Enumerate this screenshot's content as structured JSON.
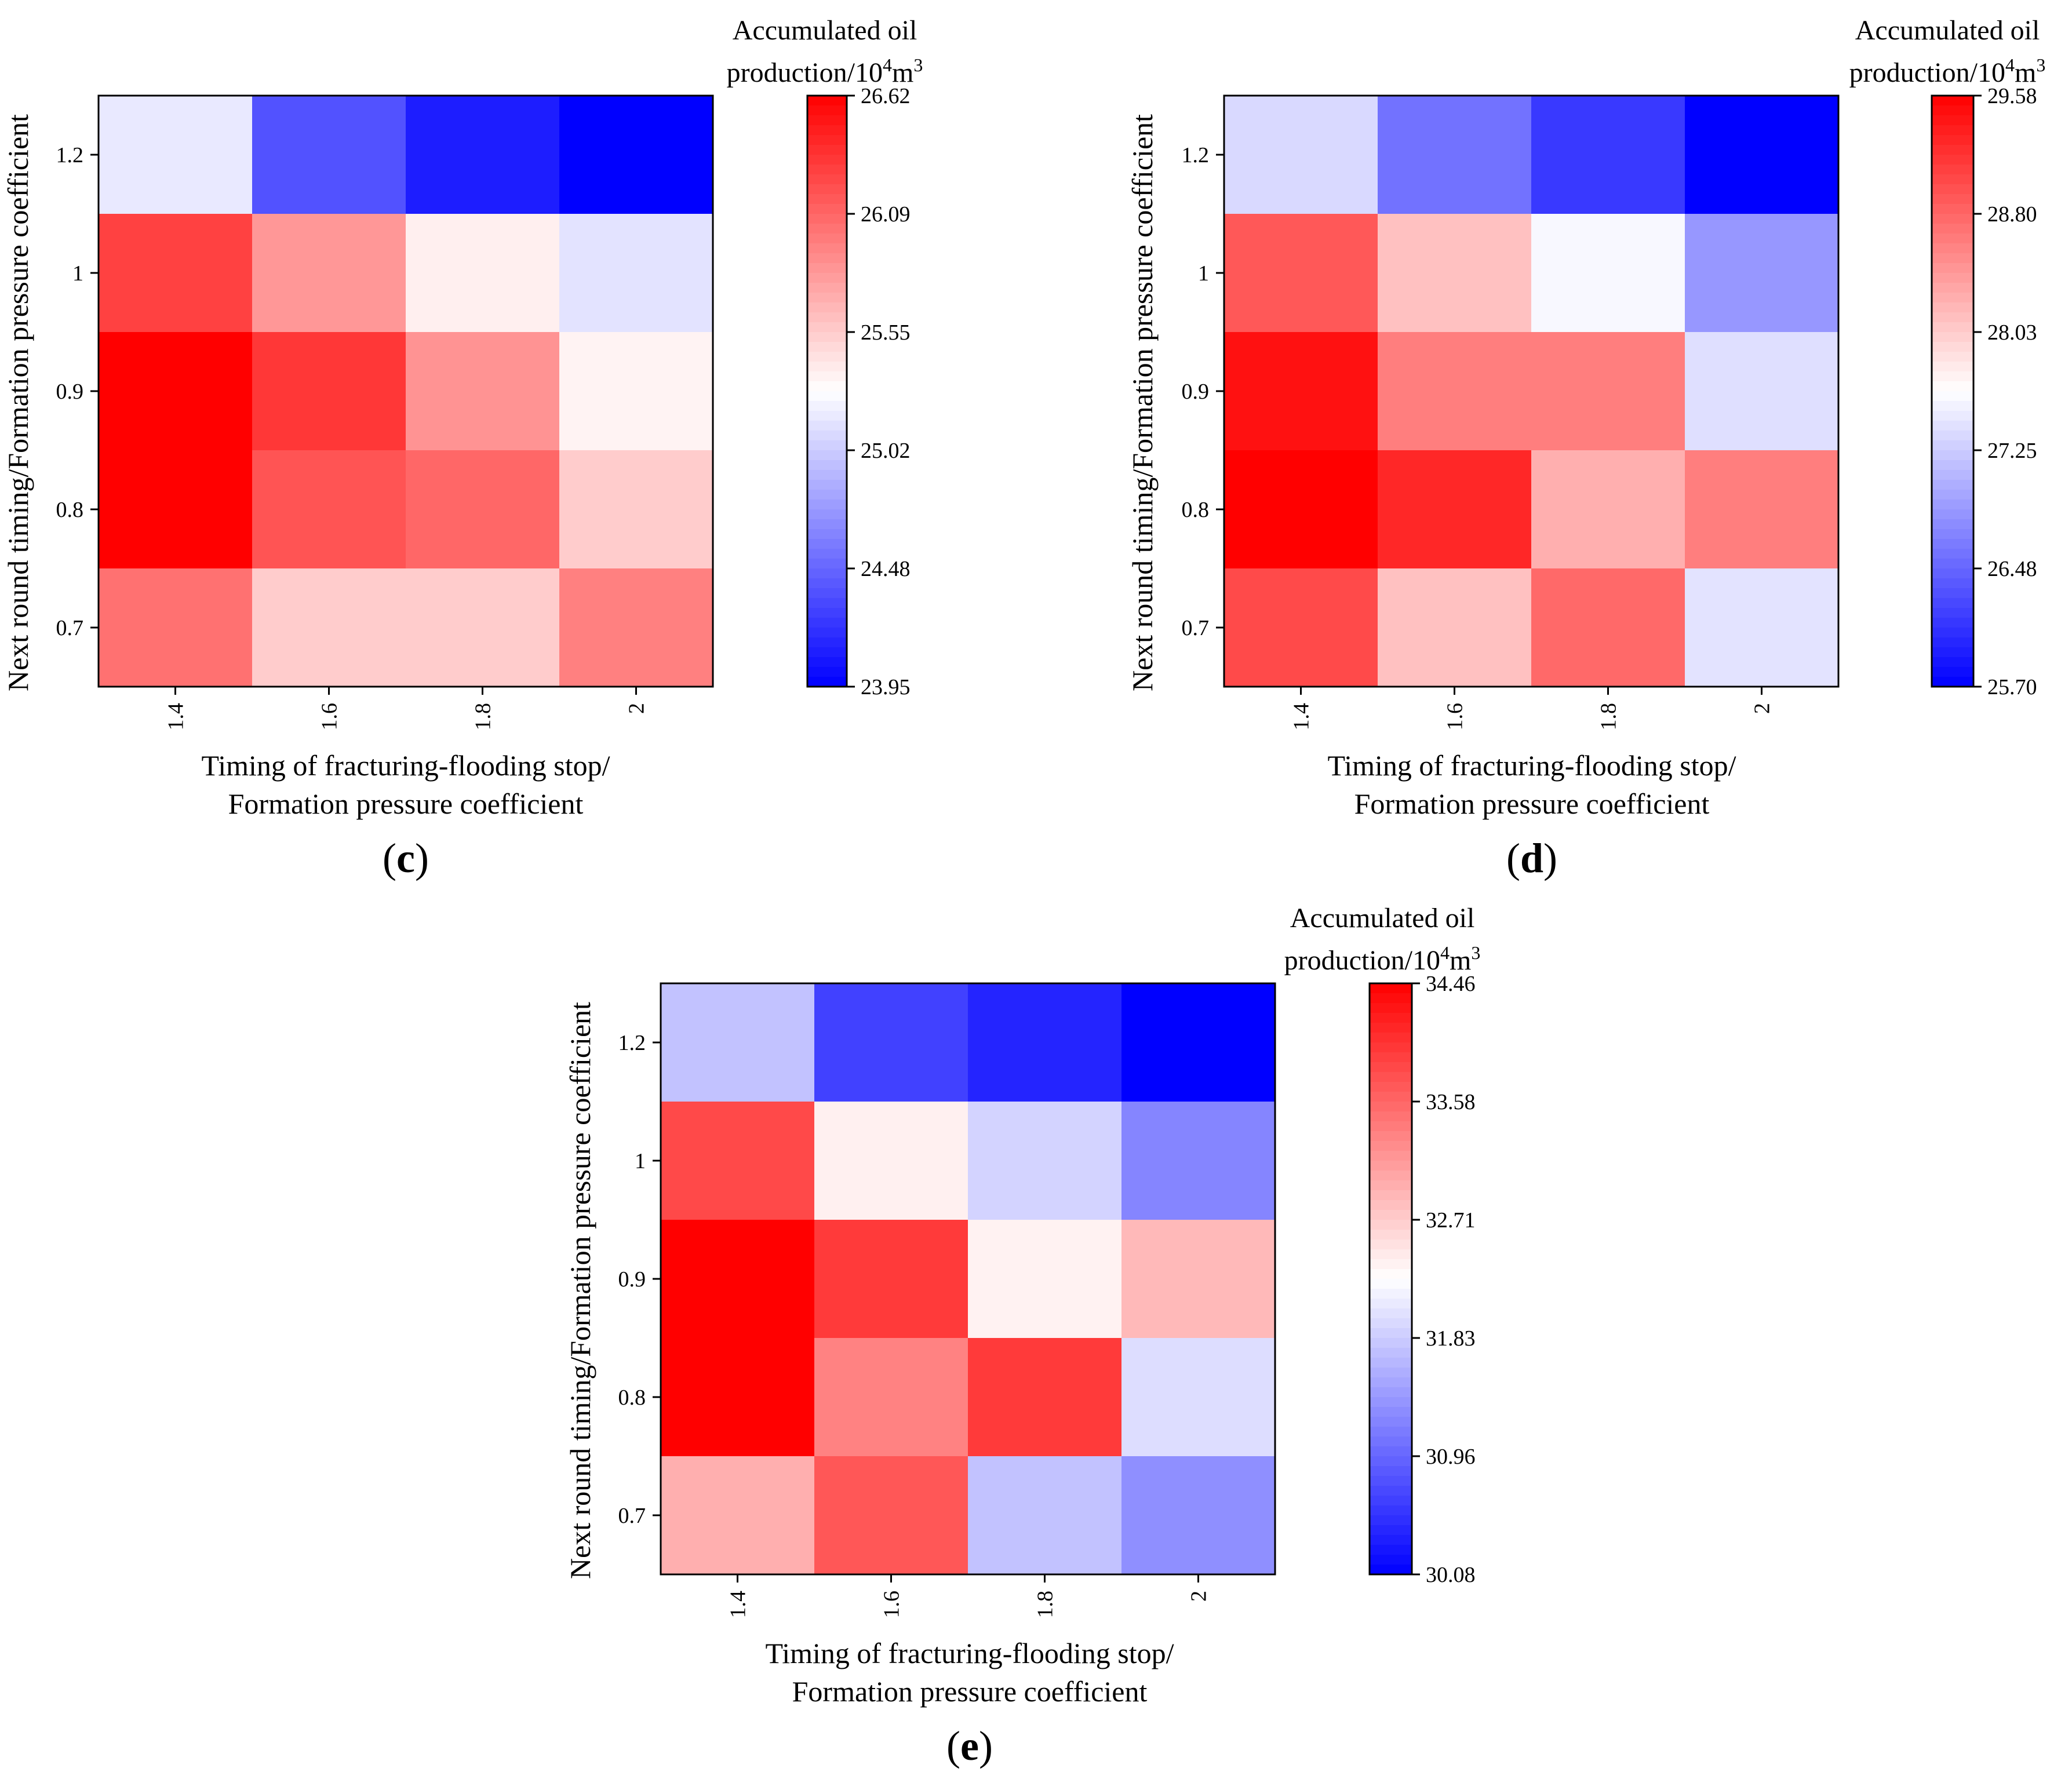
{
  "chart_data": [
    {
      "type": "heatmap",
      "panel_label": "c",
      "xlabel_lines": [
        "Timing of fracturing-flooding stop/",
        "Formation pressure coefficient"
      ],
      "ylabel": "Next round timing/Formation pressure coefficient",
      "x_categories": [
        "1.4",
        "1.6",
        "1.8",
        "2"
      ],
      "y_categories": [
        "1.2",
        "1",
        "0.9",
        "0.8",
        "0.7"
      ],
      "values": [
        [
          25.17,
          24.38,
          24.1,
          23.95
        ],
        [
          26.28,
          25.83,
          25.37,
          25.14
        ],
        [
          26.62,
          26.33,
          25.85,
          25.35
        ],
        [
          26.62,
          26.18,
          26.08,
          25.55
        ],
        [
          26.03,
          25.55,
          25.55,
          25.95
        ]
      ],
      "colorbar": {
        "title_line1": "Accumulated oil",
        "title_line2_prefix": "production/10",
        "title_sup1": "4",
        "title_mid": "m",
        "title_sup2": "3",
        "min": 23.95,
        "max": 26.62,
        "ticks": [
          "26.62",
          "26.09",
          "25.55",
          "25.02",
          "24.48",
          "23.95"
        ]
      }
    },
    {
      "type": "heatmap",
      "panel_label": "d",
      "xlabel_lines": [
        "Timing of fracturing-flooding stop/",
        "Formation pressure coefficient"
      ],
      "ylabel": "Next round timing/Formation pressure coefficient",
      "x_categories": [
        "1.4",
        "1.6",
        "1.8",
        "2"
      ],
      "y_categories": [
        "1.2",
        "1",
        "0.9",
        "0.8",
        "0.7"
      ],
      "values": [
        [
          27.35,
          26.57,
          26.13,
          25.7
        ],
        [
          28.91,
          28.11,
          27.59,
          26.85
        ],
        [
          29.45,
          28.62,
          28.62,
          27.4
        ],
        [
          29.58,
          29.28,
          28.25,
          28.62
        ],
        [
          29.02,
          28.11,
          28.78,
          27.43
        ]
      ],
      "colorbar": {
        "title_line1": "Accumulated oil",
        "title_line2_prefix": "production/10",
        "title_sup1": "4",
        "title_mid": "m",
        "title_sup2": "3",
        "min": 25.7,
        "max": 29.58,
        "ticks": [
          "29.58",
          "28.80",
          "28.03",
          "27.25",
          "26.48",
          "25.70"
        ]
      }
    },
    {
      "type": "heatmap",
      "panel_label": "e",
      "xlabel_lines": [
        "Timing of fracturing-flooding stop/",
        "Formation pressure coefficient"
      ],
      "ylabel": "Next round timing/Formation pressure coefficient",
      "x_categories": [
        "1.4",
        "1.6",
        "1.8",
        "2"
      ],
      "y_categories": [
        "1.2",
        "1",
        "0.9",
        "0.8",
        "0.7"
      ],
      "values": [
        [
          31.75,
          30.64,
          30.39,
          30.08
        ],
        [
          33.83,
          32.4,
          31.89,
          31.22
        ],
        [
          34.46,
          33.96,
          32.38,
          32.87
        ],
        [
          34.46,
          33.34,
          33.96,
          31.98
        ],
        [
          32.96,
          33.71,
          31.75,
          31.31
        ]
      ],
      "colorbar": {
        "title_line1": "Accumulated oil",
        "title_line2_prefix": "production/10",
        "title_sup1": "4",
        "title_mid": "m",
        "title_sup2": "3",
        "min": 30.08,
        "max": 34.46,
        "ticks": [
          "34.46",
          "33.58",
          "32.71",
          "31.83",
          "30.96",
          "30.08"
        ]
      }
    }
  ]
}
